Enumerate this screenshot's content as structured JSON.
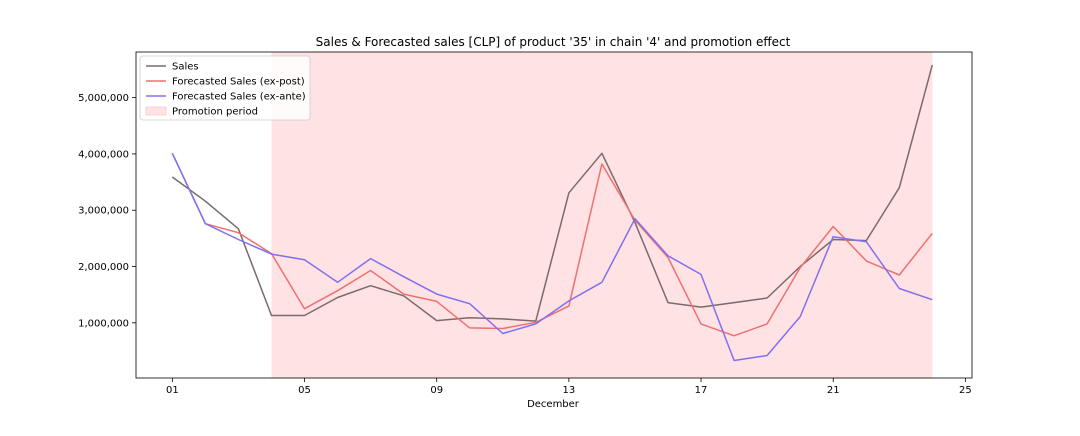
{
  "chart_data": {
    "type": "line",
    "title": "Sales & Forecasted sales [CLP] of product '35' in chain '4' and promotion effect",
    "xlabel": "December",
    "ylabel": "",
    "x": [
      1,
      2,
      3,
      4,
      5,
      6,
      7,
      8,
      9,
      10,
      11,
      12,
      13,
      14,
      15,
      16,
      17,
      18,
      19,
      20,
      21,
      22,
      23,
      24
    ],
    "xlim": [
      -0.1,
      25.2
    ],
    "ylim": [
      20000,
      5810000
    ],
    "x_ticks": [
      {
        "value": 1,
        "label": "01"
      },
      {
        "value": 5,
        "label": "05"
      },
      {
        "value": 9,
        "label": "09"
      },
      {
        "value": 13,
        "label": "13"
      },
      {
        "value": 17,
        "label": "17"
      },
      {
        "value": 21,
        "label": "21"
      },
      {
        "value": 25,
        "label": "25"
      }
    ],
    "y_ticks": [
      {
        "value": 1000000,
        "label": "1,000,000"
      },
      {
        "value": 2000000,
        "label": "2,000,000"
      },
      {
        "value": 3000000,
        "label": "3,000,000"
      },
      {
        "value": 4000000,
        "label": "4,000,000"
      },
      {
        "value": 5000000,
        "label": "5,000,000"
      }
    ],
    "series": [
      {
        "name": "Sales",
        "color": "#7a6b6b",
        "values": [
          3590000,
          3160000,
          2670000,
          1130000,
          1130000,
          1450000,
          1660000,
          1480000,
          1040000,
          1090000,
          1070000,
          1030000,
          3310000,
          4010000,
          2780000,
          1360000,
          1280000,
          1360000,
          1440000,
          2000000,
          2480000,
          2460000,
          3400000,
          5580000
        ]
      },
      {
        "name": "Forecasted Sales (ex-post)",
        "color": "#f07070",
        "values": [
          4010000,
          2760000,
          2600000,
          2230000,
          1250000,
          1570000,
          1930000,
          1510000,
          1380000,
          910000,
          900000,
          1010000,
          1300000,
          3820000,
          2820000,
          2160000,
          980000,
          770000,
          980000,
          1980000,
          2710000,
          2100000,
          1850000,
          2590000
        ]
      },
      {
        "name": "Forecasted Sales (ex-ante)",
        "color": "#8070f0",
        "values": [
          4010000,
          2760000,
          2480000,
          2220000,
          2120000,
          1720000,
          2140000,
          1820000,
          1510000,
          1340000,
          810000,
          980000,
          1390000,
          1720000,
          2850000,
          2190000,
          1860000,
          330000,
          420000,
          1110000,
          2530000,
          2440000,
          1610000,
          1410000
        ]
      }
    ],
    "promotion": {
      "name": "Promotion period",
      "start": 4,
      "end": 24,
      "color": "#ffe2e4"
    },
    "legend_position": "top-left",
    "grid": false
  }
}
